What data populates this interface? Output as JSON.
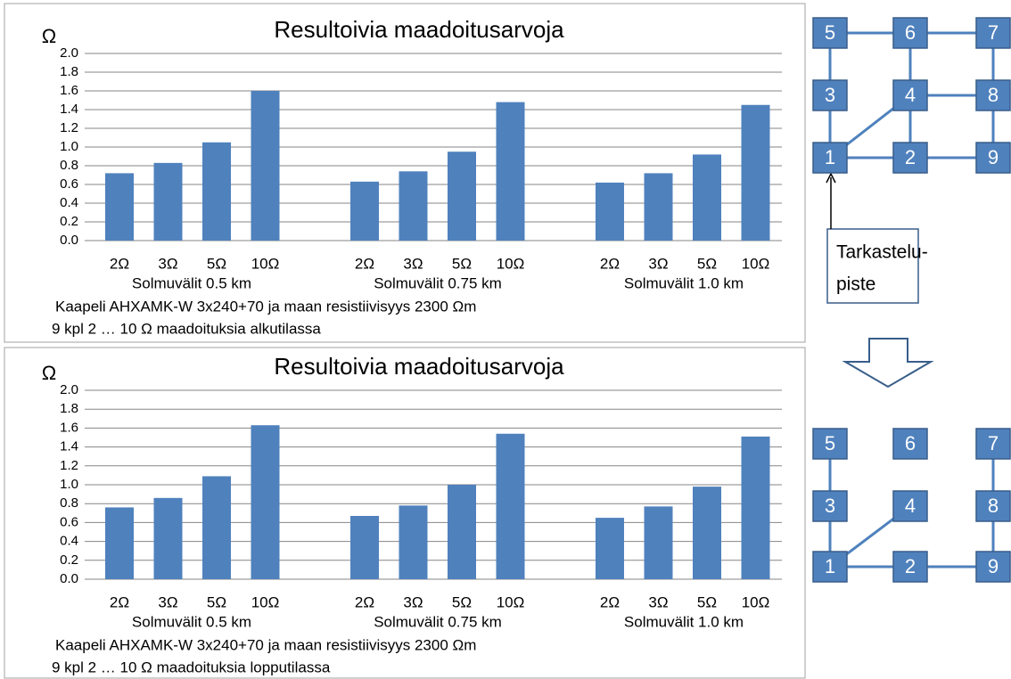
{
  "chart_data": [
    {
      "type": "bar",
      "title": "Resultoivia maadoitusarvoja",
      "y_label": "Ω",
      "categories": [
        "2Ω",
        "3Ω",
        "5Ω",
        "10Ω",
        "2Ω",
        "3Ω",
        "5Ω",
        "10Ω",
        "2Ω",
        "3Ω",
        "5Ω",
        "10Ω"
      ],
      "groups": [
        "Solmuvälit  0.5 km",
        "Solmuvälit  0.75 km",
        "Solmuvälit  1.0 km"
      ],
      "values": [
        0.72,
        0.83,
        1.05,
        1.6,
        0.63,
        0.74,
        0.95,
        1.48,
        0.62,
        0.72,
        0.92,
        1.45
      ],
      "color": "#4f81bd",
      "ylim": [
        0,
        2
      ],
      "grid": true,
      "yticks": [
        {
          "value": 0,
          "label": "0.0"
        },
        0.2,
        0.4,
        0.6,
        0.8,
        {
          "value": 1,
          "label": "1.0"
        },
        1.2,
        1.4,
        1.6,
        1.8,
        {
          "value": 2,
          "label": "2.0"
        }
      ],
      "notes": [
        "Kaapeli  AHXAMK-W  3x240+70  ja maan resistiivisyys  2300 Ωm",
        "9 kpl  2 … 10 Ω  maadoituksia  alkutilassa"
      ]
    },
    {
      "type": "bar",
      "title": "Resultoivia maadoitusarvoja",
      "y_label": "Ω",
      "categories": [
        "2Ω",
        "3Ω",
        "5Ω",
        "10Ω",
        "2Ω",
        "3Ω",
        "5Ω",
        "10Ω",
        "2Ω",
        "3Ω",
        "5Ω",
        "10Ω"
      ],
      "groups": [
        "Solmuvälit  0.5 km",
        "Solmuvälit  0.75 km",
        "Solmuvälit  1.0 km"
      ],
      "values": [
        0.76,
        0.86,
        1.09,
        1.63,
        0.67,
        0.78,
        1.0,
        1.54,
        0.65,
        0.77,
        0.98,
        1.51
      ],
      "color": "#4f81bd",
      "ylim": [
        0,
        2
      ],
      "grid": true,
      "yticks": [
        {
          "value": 0,
          "label": "0.0"
        },
        0.2,
        0.4,
        0.6,
        0.8,
        {
          "value": 1,
          "label": "1.0"
        },
        1.2,
        1.4,
        1.6,
        1.8,
        {
          "value": 2,
          "label": "2.0"
        }
      ],
      "notes": [
        "Kaapeli  AHXAMK-W  3x240+70  ja maan resistiivisyys  2300 Ωm",
        "9 kpl  2 … 10 Ω  maadoituksia  lopputilassa"
      ]
    }
  ],
  "diagrams": [
    {
      "nodes": [
        "5",
        "6",
        "7",
        "3",
        "4",
        "8",
        "1",
        "2",
        "9"
      ]
    },
    {
      "nodes": [
        "5",
        "6",
        "7",
        "3",
        "4",
        "8",
        "1",
        "2",
        "9"
      ]
    }
  ],
  "callout": [
    "Tarkastelu-",
    "piste"
  ]
}
